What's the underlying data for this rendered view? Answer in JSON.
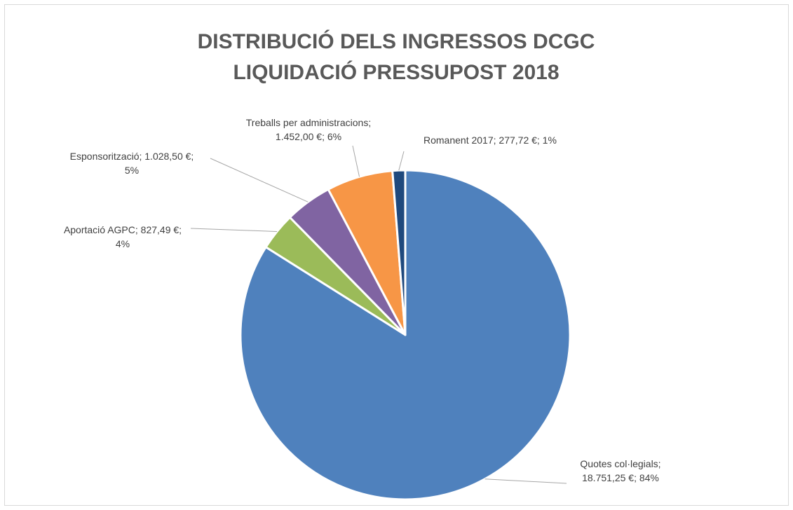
{
  "chart_data": {
    "type": "pie",
    "title": "DISTRIBUCIÓ DELS INGRESSOS DCGC\nLIQUIDACIÓ PRESSUPOST 2018",
    "values": [
      18751.25,
      827.49,
      1028.5,
      1452.0,
      277.72
    ],
    "value_labels": [
      "Quotes col·legials; 18.751,25 €; 84%",
      "Aportació AGPC; 827,49 €; 4%",
      "Esponsorització; 1.028,50 €; 5%",
      "Treballs per administracions; 1.452,00 €; 6%",
      "Romanent 2017; 277,72 €; 1%"
    ],
    "colors": [
      "#4f81bd",
      "#9bbb59",
      "#8064a2",
      "#f79646",
      "#1f497d"
    ]
  }
}
